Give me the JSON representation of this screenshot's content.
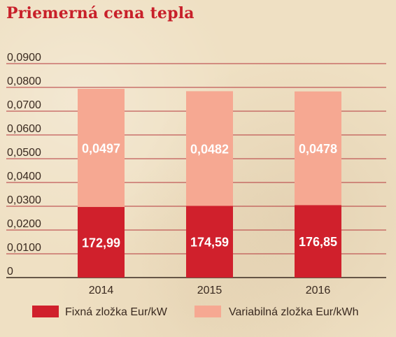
{
  "title": "Priemerná cena tepla",
  "colors": {
    "fixed": "#d0202c",
    "variable": "#f6a892",
    "grid": "#b5373c",
    "axis": "#3a2a20"
  },
  "chart_data": {
    "type": "bar",
    "stacked": true,
    "title": "Priemerná cena tepla",
    "categories": [
      "2014",
      "2015",
      "2016"
    ],
    "series": [
      {
        "name": "Fixná zložka Eur/kW",
        "labels": [
          "172,99",
          "174,59",
          "176,85"
        ],
        "values": [
          0.0297,
          0.0302,
          0.0305
        ]
      },
      {
        "name": "Variabilná zložka Eur/kWh",
        "labels": [
          "0,0497",
          "0,0482",
          "0,0478"
        ],
        "values": [
          0.0497,
          0.0482,
          0.0478
        ]
      }
    ],
    "y_ticks": [
      "0",
      "0,0100",
      "0,0200",
      "0,0300",
      "0,0400",
      "0,0500",
      "0,0600",
      "0,0700",
      "0,0800",
      "0,0900"
    ],
    "ylim": [
      0,
      0.09
    ],
    "grid": true,
    "legend_position": "bottom"
  }
}
